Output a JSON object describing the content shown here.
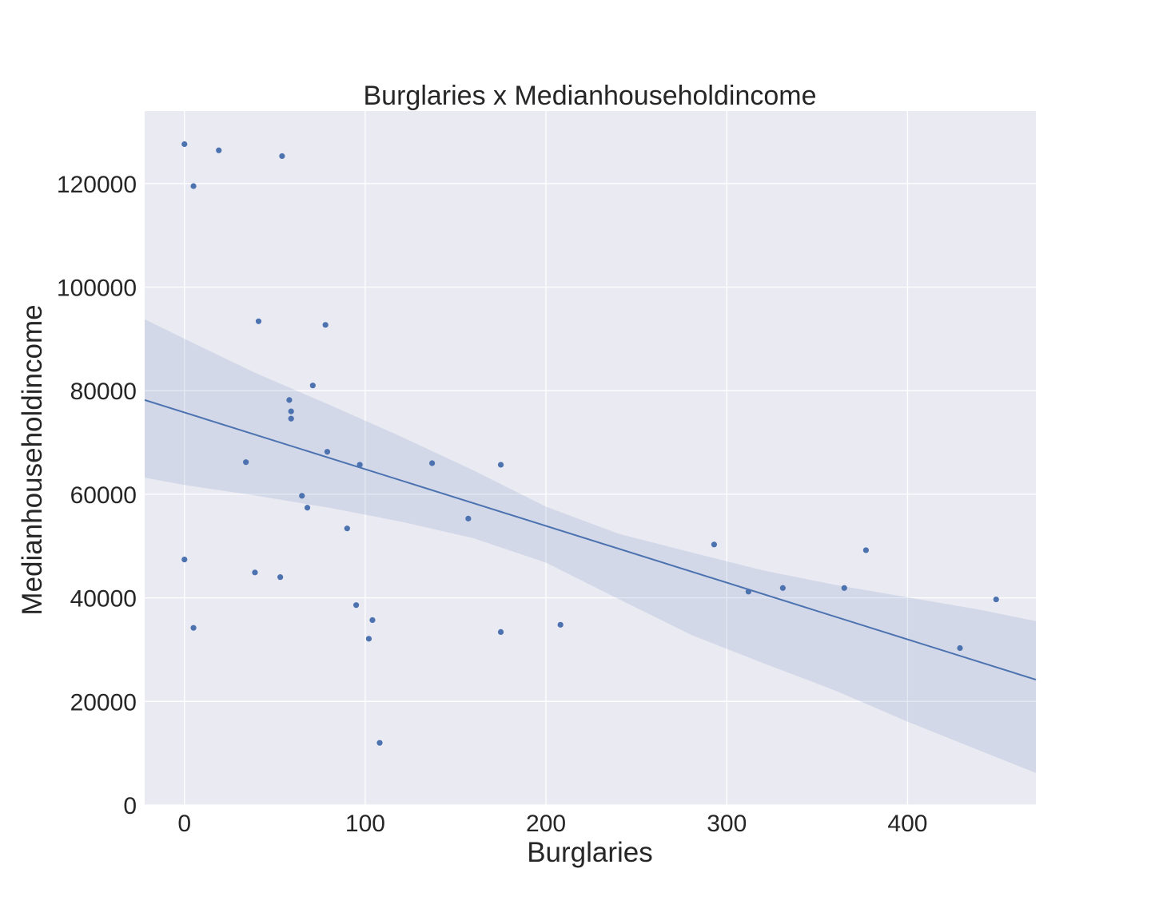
{
  "chart_data": {
    "type": "scatter",
    "title": "Burglaries x Medianhouseholdincome",
    "xlabel": "Burglaries",
    "ylabel": "Medianhouseholdincome",
    "xlim": [
      -22,
      471
    ],
    "ylim": [
      0,
      134000
    ],
    "xticks": [
      0,
      100,
      200,
      300,
      400
    ],
    "yticks": [
      0,
      20000,
      40000,
      60000,
      80000,
      100000,
      120000
    ],
    "grid": true,
    "style": "seaborn-darkgrid",
    "colors": {
      "background": "#eaeaf2",
      "grid": "#ffffff",
      "point": "#4c72b0",
      "line": "#4c72b0",
      "band": "#4c72b0"
    },
    "points": [
      {
        "x": 0,
        "y": 127600
      },
      {
        "x": 19,
        "y": 126400
      },
      {
        "x": 54,
        "y": 125300
      },
      {
        "x": 5,
        "y": 119500
      },
      {
        "x": 41,
        "y": 93400
      },
      {
        "x": 78,
        "y": 92700
      },
      {
        "x": 71,
        "y": 81000
      },
      {
        "x": 58,
        "y": 78200
      },
      {
        "x": 59,
        "y": 76000
      },
      {
        "x": 59,
        "y": 74600
      },
      {
        "x": 79,
        "y": 68200
      },
      {
        "x": 34,
        "y": 66200
      },
      {
        "x": 97,
        "y": 65700
      },
      {
        "x": 137,
        "y": 66000
      },
      {
        "x": 175,
        "y": 65700
      },
      {
        "x": 65,
        "y": 59700
      },
      {
        "x": 68,
        "y": 57400
      },
      {
        "x": 157,
        "y": 55300
      },
      {
        "x": 90,
        "y": 53400
      },
      {
        "x": 293,
        "y": 50300
      },
      {
        "x": 377,
        "y": 49200
      },
      {
        "x": 0,
        "y": 47400
      },
      {
        "x": 39,
        "y": 44900
      },
      {
        "x": 53,
        "y": 44000
      },
      {
        "x": 312,
        "y": 41200
      },
      {
        "x": 331,
        "y": 41900
      },
      {
        "x": 365,
        "y": 41900
      },
      {
        "x": 449,
        "y": 39700
      },
      {
        "x": 95,
        "y": 38600
      },
      {
        "x": 104,
        "y": 35700
      },
      {
        "x": 208,
        "y": 34800
      },
      {
        "x": 5,
        "y": 34200
      },
      {
        "x": 175,
        "y": 33400
      },
      {
        "x": 102,
        "y": 32100
      },
      {
        "x": 429,
        "y": 30300
      },
      {
        "x": 108,
        "y": 12000
      }
    ],
    "regression": {
      "x": [
        -22,
        471
      ],
      "y": [
        78200,
        24200
      ]
    },
    "confidence_band": {
      "x": [
        -22,
        0,
        40,
        80,
        120,
        160,
        200,
        240,
        280,
        320,
        360,
        400,
        440,
        471
      ],
      "upper": [
        93800,
        90000,
        83300,
        77300,
        71100,
        64600,
        57600,
        52400,
        48800,
        45300,
        42500,
        40100,
        37700,
        35500
      ],
      "lower": [
        63200,
        61800,
        59700,
        57400,
        54700,
        51500,
        46800,
        39800,
        32900,
        27400,
        22100,
        16100,
        10500,
        6200
      ]
    }
  }
}
